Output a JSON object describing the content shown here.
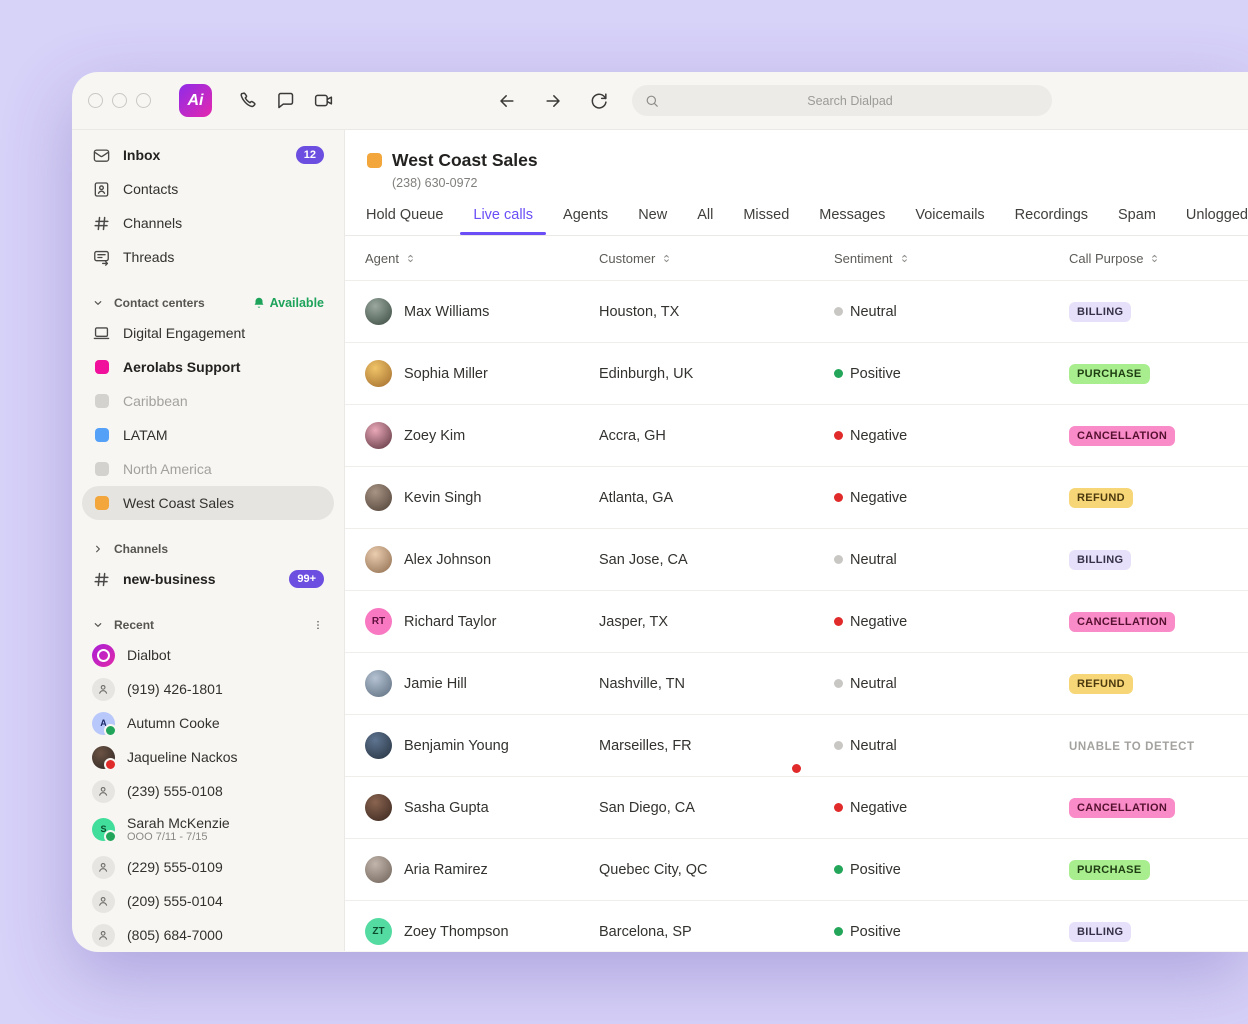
{
  "topbar": {
    "search_placeholder": "Search Dialpad",
    "logo_text": "Ai"
  },
  "theme": {
    "background_lavender": "#D7D2F8",
    "window_bg": "#F7F6F3",
    "accent_purple": "#6C4EE0",
    "tab_active_purple": "#6B4EF6",
    "available_green": "#1EA35B",
    "selected_item_bg": "#E6E4E1"
  },
  "sidebar": {
    "nav": [
      {
        "label": "Inbox",
        "icon": "inbox",
        "bold": true,
        "badge": "12"
      },
      {
        "label": "Contacts",
        "icon": "contacts"
      },
      {
        "label": "Channels",
        "icon": "hash"
      },
      {
        "label": "Threads",
        "icon": "threads"
      }
    ],
    "contact_centers": {
      "header": "Contact centers",
      "status": "Available",
      "items": [
        {
          "label": "Digital Engagement",
          "icon": "monitor"
        },
        {
          "label": "Aerolabs Support",
          "swatch": "#F0109B",
          "bold": true
        },
        {
          "label": "Caribbean",
          "swatch": "#D3D2CF",
          "muted": true
        },
        {
          "label": "LATAM",
          "swatch": "#55A1F8"
        },
        {
          "label": "North America",
          "swatch": "#D3D2CF",
          "muted": true
        },
        {
          "label": "West Coast Sales",
          "swatch": "#F2A63C",
          "selected": true
        }
      ]
    },
    "channels_section": {
      "header": "Channels",
      "items": [
        {
          "label": "new-business",
          "icon": "hash",
          "bold": true,
          "badge": "99+"
        }
      ]
    },
    "recent": {
      "header": "Recent",
      "items": [
        {
          "label": "Dialbot",
          "avatar": {
            "kind": "dialbot"
          }
        },
        {
          "label": "(919) 426-1801",
          "avatar": {
            "kind": "person"
          }
        },
        {
          "label": "Autumn Cooke",
          "avatar": {
            "kind": "initial",
            "text": "A",
            "bg": "#B9C8FA",
            "fg": "#1D2B6B"
          },
          "presence": "#22A55B"
        },
        {
          "label": "Jaqueline Nackos",
          "avatar": {
            "kind": "photo",
            "c1": "#6B5344",
            "c2": "#2E2622"
          },
          "presence": "#E02B2B"
        },
        {
          "label": "(239) 555-0108",
          "avatar": {
            "kind": "person"
          }
        },
        {
          "label": "Sarah McKenzie",
          "sublabel": "OOO 7/11 - 7/15",
          "avatar": {
            "kind": "initial",
            "text": "S",
            "bg": "#41DD9B",
            "fg": "#0B4D2E"
          },
          "presence": "#22A55B"
        },
        {
          "label": "(229) 555-0109",
          "avatar": {
            "kind": "person"
          }
        },
        {
          "label": "(209) 555-0104",
          "avatar": {
            "kind": "person"
          }
        },
        {
          "label": "(805) 684-7000",
          "avatar": {
            "kind": "person"
          }
        }
      ]
    }
  },
  "main": {
    "title": "West Coast Sales",
    "title_swatch": "#F2A63C",
    "phone": "(238) 630-0972",
    "tabs": [
      "Hold Queue",
      "Live calls",
      "Agents",
      "New",
      "All",
      "Missed",
      "Messages",
      "Voicemails",
      "Recordings",
      "Spam",
      "Unlogged"
    ],
    "active_tab": "Live calls",
    "table": {
      "columns": [
        "Agent",
        "Customer",
        "Sentiment",
        "Call Purpose"
      ],
      "sentiment_styles": {
        "Neutral": "#C8C7C4",
        "Positive": "#23A55A",
        "Negative": "#E12B2B"
      },
      "badge_styles": {
        "BILLING": {
          "bg": "#E6E0FA",
          "fg": "#363048"
        },
        "PURCHASE": {
          "bg": "#A9EE8E",
          "fg": "#1E3D12"
        },
        "CANCELLATION": {
          "bg": "#F98BC8",
          "fg": "#55102F"
        },
        "REFUND": {
          "bg": "#F7D677",
          "fg": "#4C390E"
        },
        "UNABLE TO DETECT": {
          "bg": "",
          "fg": "#A3A29E",
          "plain": true
        }
      },
      "rows": [
        {
          "agent": "Max Williams",
          "avatar": {
            "kind": "photo",
            "c1": "#9AA8A0",
            "c2": "#39493F"
          },
          "customer": "Houston, TX",
          "sentiment": "Neutral",
          "purpose": "BILLING"
        },
        {
          "agent": "Sophia Miller",
          "avatar": {
            "kind": "photo",
            "c1": "#F0C468",
            "c2": "#A06B2C"
          },
          "customer": "Edinburgh, UK",
          "sentiment": "Positive",
          "purpose": "PURCHASE"
        },
        {
          "agent": "Zoey Kim",
          "avatar": {
            "kind": "photo",
            "c1": "#E9A8B8",
            "c2": "#58313C"
          },
          "customer": "Accra, GH",
          "sentiment": "Negative",
          "purpose": "CANCELLATION"
        },
        {
          "agent": "Kevin Singh",
          "avatar": {
            "kind": "photo",
            "c1": "#A89484",
            "c2": "#4E4036"
          },
          "customer": "Atlanta, GA",
          "sentiment": "Negative",
          "purpose": "REFUND"
        },
        {
          "agent": "Alex Johnson",
          "avatar": {
            "kind": "photo",
            "c1": "#EACCAE",
            "c2": "#8E6C4E"
          },
          "customer": "San Jose, CA",
          "sentiment": "Neutral",
          "purpose": "BILLING"
        },
        {
          "agent": "Richard Taylor",
          "avatar": {
            "kind": "initial",
            "text": "RT",
            "bg": "#F878C2",
            "fg": "#5E0F3D"
          },
          "customer": "Jasper, TX",
          "sentiment": "Negative",
          "purpose": "CANCELLATION"
        },
        {
          "agent": "Jamie Hill",
          "avatar": {
            "kind": "photo",
            "c1": "#B4C2D2",
            "c2": "#5C6C7E"
          },
          "customer": "Nashville, TN",
          "sentiment": "Neutral",
          "purpose": "REFUND"
        },
        {
          "agent": "Benjamin Young",
          "avatar": {
            "kind": "photo",
            "c1": "#5E7490",
            "c2": "#26323F"
          },
          "customer": "Marseilles, FR",
          "sentiment": "Neutral",
          "purpose": "UNABLE TO DETECT"
        },
        {
          "agent": "Sasha Gupta",
          "avatar": {
            "kind": "photo",
            "c1": "#8A6450",
            "c2": "#38261E"
          },
          "customer": "San Diego, CA",
          "sentiment": "Negative",
          "purpose": "CANCELLATION"
        },
        {
          "agent": "Aria Ramirez",
          "avatar": {
            "kind": "photo",
            "c1": "#C2B6AC",
            "c2": "#6E6258"
          },
          "customer": "Quebec City, QC",
          "sentiment": "Positive",
          "purpose": "PURCHASE"
        },
        {
          "agent": "Zoey Thompson",
          "avatar": {
            "kind": "initial",
            "text": "ZT",
            "bg": "#54DBA2",
            "fg": "#0B4D2E"
          },
          "customer": "Barcelona, SP",
          "sentiment": "Positive",
          "purpose": "BILLING"
        }
      ]
    }
  }
}
